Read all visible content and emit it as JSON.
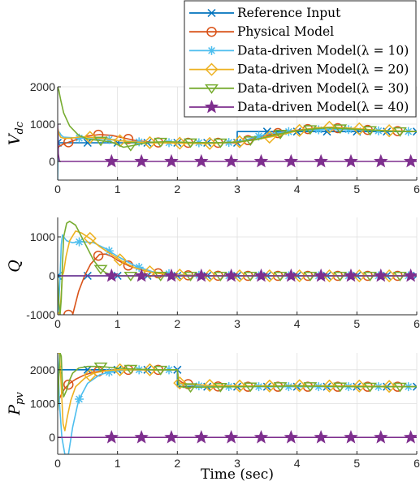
{
  "chart_data": [
    {
      "type": "line",
      "ylabel": "V_dc",
      "xlim": [
        0,
        6
      ],
      "ylim": [
        -500,
        2000
      ],
      "xticks": [
        0,
        1,
        2,
        3,
        4,
        5,
        6
      ],
      "yticks": [
        0,
        1000,
        2000
      ],
      "ytick_labels": [
        "0",
        "1000",
        "2000"
      ],
      "grid": true,
      "series": [
        {
          "name": "Reference Input",
          "x": [
            0,
            3,
            3,
            6
          ],
          "y": [
            500,
            500,
            800,
            800
          ]
        },
        {
          "name": "Physical Model",
          "x": [
            0,
            0.02,
            0.1,
            0.3,
            0.5,
            0.7,
            0.9,
            1.1,
            1.3,
            1.6,
            2.0,
            2.5,
            3.0,
            3.2,
            3.5,
            3.8,
            4.2,
            4.5,
            4.9,
            5.3,
            6.0
          ],
          "y": [
            300,
            400,
            470,
            580,
            680,
            720,
            700,
            630,
            560,
            510,
            500,
            500,
            500,
            580,
            700,
            800,
            870,
            900,
            880,
            830,
            800
          ]
        },
        {
          "name": "Data-driven Model(λ = 10)",
          "x": [
            0,
            0.01,
            0.03,
            0.06,
            0.1,
            0.2,
            0.4,
            0.6,
            0.8,
            1.0,
            1.5,
            2.0,
            2.5,
            2.9,
            3.1,
            3.5,
            4.0,
            4.5,
            5.0,
            5.5,
            6.0
          ],
          "y": [
            -500,
            800,
            780,
            700,
            650,
            640,
            620,
            600,
            600,
            560,
            510,
            500,
            500,
            510,
            560,
            740,
            820,
            860,
            850,
            810,
            800
          ]
        },
        {
          "name": "Data-driven Model(λ = 20)",
          "x": [
            0,
            0.02,
            0.05,
            0.1,
            0.2,
            0.4,
            0.6,
            0.8,
            1.0,
            1.3,
            1.6,
            2.0,
            2.5,
            3.0,
            3.3,
            3.7,
            4.0,
            4.3,
            4.6,
            5.0,
            5.4,
            6.0
          ],
          "y": [
            900,
            750,
            650,
            620,
            620,
            660,
            640,
            610,
            560,
            520,
            500,
            490,
            480,
            520,
            580,
            700,
            820,
            900,
            920,
            880,
            830,
            800
          ]
        },
        {
          "name": "Data-driven Model(λ = 30)",
          "x": [
            0,
            0.02,
            0.05,
            0.1,
            0.2,
            0.35,
            0.5,
            0.7,
            0.9,
            1.1,
            1.3,
            1.5,
            1.8,
            2.2,
            2.6,
            3.0,
            3.3,
            3.6,
            3.9,
            4.2,
            4.5,
            4.8,
            5.2,
            5.6,
            6.0
          ],
          "y": [
            2000,
            1900,
            1650,
            1300,
            950,
            700,
            600,
            560,
            520,
            380,
            440,
            510,
            530,
            510,
            500,
            520,
            580,
            700,
            800,
            860,
            900,
            880,
            840,
            810,
            800
          ]
        },
        {
          "name": "Data-driven Model(λ = 40)",
          "x": [
            0,
            0.01,
            0.03,
            6.0
          ],
          "y": [
            1000,
            200,
            0,
            0
          ]
        }
      ]
    },
    {
      "type": "line",
      "ylabel": "Q",
      "xlim": [
        0,
        6
      ],
      "ylim": [
        -1000,
        1500
      ],
      "xticks": [
        0,
        1,
        2,
        3,
        4,
        5,
        6
      ],
      "yticks": [
        -1000,
        0,
        1000
      ],
      "ytick_labels": [
        "-1000",
        "0",
        "1000"
      ],
      "grid": true,
      "series": [
        {
          "name": "Reference Input",
          "x": [
            0,
            6
          ],
          "y": [
            0,
            0
          ]
        },
        {
          "name": "Physical Model",
          "x": [
            0.25,
            0.3,
            0.35,
            0.45,
            0.55,
            0.7,
            0.8,
            0.9,
            1.0,
            1.2,
            1.4,
            1.6,
            1.8,
            2.0,
            2.4,
            3.0,
            6.0
          ],
          "y": [
            -1000,
            -700,
            -400,
            0,
            300,
            550,
            560,
            500,
            400,
            250,
            150,
            80,
            40,
            20,
            5,
            0,
            0
          ]
        },
        {
          "name": "Data-driven Model(λ = 10)",
          "x": [
            0,
            0.02,
            0.04,
            0.06,
            0.08,
            0.1,
            0.15,
            0.25,
            0.4,
            0.6,
            0.8,
            1.0,
            1.3,
            1.6,
            2.0,
            2.5,
            3.0,
            6.0
          ],
          "y": [
            -1000,
            -700,
            0,
            800,
            1050,
            1000,
            900,
            850,
            880,
            850,
            700,
            500,
            250,
            100,
            30,
            5,
            0,
            0
          ]
        },
        {
          "name": "Data-driven Model(λ = 20)",
          "x": [
            0,
            0.04,
            0.08,
            0.1,
            0.14,
            0.2,
            0.3,
            0.4,
            0.55,
            0.7,
            0.9,
            1.1,
            1.3,
            1.6,
            2.0,
            2.5,
            3.0,
            6.0
          ],
          "y": [
            -1000,
            -900,
            0,
            100,
            500,
            900,
            1150,
            1100,
            950,
            750,
            550,
            350,
            200,
            80,
            20,
            5,
            0,
            0
          ]
        },
        {
          "name": "Data-driven Model(λ = 30)",
          "x": [
            0,
            0.02,
            0.04,
            0.06,
            0.08,
            0.1,
            0.15,
            0.2,
            0.3,
            0.4,
            0.5,
            0.6,
            0.7,
            0.8,
            0.9,
            1.0,
            1.3,
            2.0,
            6.0
          ],
          "y": [
            0,
            -700,
            -1000,
            -600,
            300,
            1000,
            1350,
            1400,
            1300,
            1000,
            700,
            400,
            200,
            80,
            20,
            0,
            0,
            0,
            0
          ]
        },
        {
          "name": "Data-driven Model(λ = 40)",
          "x": [
            0,
            6
          ],
          "y": [
            0,
            0
          ]
        }
      ]
    },
    {
      "type": "line",
      "ylabel": "P_pv",
      "xlabel": "Time (sec)",
      "xlim": [
        0,
        6
      ],
      "ylim": [
        -500,
        2500
      ],
      "xticks": [
        0,
        1,
        2,
        3,
        4,
        5,
        6
      ],
      "xtick_labels": [
        "0",
        "1",
        "2",
        "3",
        "4",
        "5",
        "6"
      ],
      "yticks": [
        0,
        1000,
        2000
      ],
      "ytick_labels": [
        "0",
        "1000",
        "2000"
      ],
      "grid": true,
      "series": [
        {
          "name": "Reference Input",
          "x": [
            0,
            2,
            2,
            6
          ],
          "y": [
            2000,
            2000,
            1500,
            1500
          ]
        },
        {
          "name": "Physical Model",
          "x": [
            0,
            0.03,
            0.07,
            0.12,
            0.2,
            0.3,
            0.45,
            0.6,
            0.8,
            1.0,
            1.3,
            1.6,
            2.0,
            2.02,
            2.1,
            2.3,
            2.6,
            3.0,
            4.0,
            6.0
          ],
          "y": [
            1000,
            1150,
            1300,
            1450,
            1600,
            1720,
            1850,
            1930,
            1980,
            2000,
            2000,
            2000,
            2000,
            1700,
            1600,
            1540,
            1510,
            1500,
            1500,
            1500
          ]
        },
        {
          "name": "Data-driven Model(λ = 10)",
          "x": [
            0,
            0.03,
            0.07,
            0.12,
            0.18,
            0.25,
            0.35,
            0.5,
            0.7,
            0.9,
            1.2,
            1.6,
            2.0,
            2.02,
            2.1,
            2.4,
            3.0,
            6.0
          ],
          "y": [
            2500,
            1000,
            0,
            -500,
            -500,
            300,
            1100,
            1600,
            1850,
            1950,
            2000,
            2000,
            2000,
            1600,
            1560,
            1520,
            1500,
            1500
          ]
        },
        {
          "name": "Data-driven Model(λ = 20)",
          "x": [
            0,
            0.03,
            0.06,
            0.09,
            0.12,
            0.16,
            0.22,
            0.3,
            0.45,
            0.6,
            0.8,
            1.0,
            1.3,
            1.7,
            2.0,
            2.02,
            2.1,
            2.5,
            3.0,
            3.5,
            4.0,
            4.5,
            5.0,
            5.5,
            6.0
          ],
          "y": [
            2500,
            2500,
            1500,
            400,
            200,
            600,
            1100,
            1500,
            1750,
            1900,
            1970,
            2000,
            2000,
            2000,
            2000,
            1620,
            1580,
            1540,
            1520,
            1520,
            1530,
            1520,
            1520,
            1510,
            1500
          ]
        },
        {
          "name": "Data-driven Model(λ = 30)",
          "x": [
            0,
            0.02,
            0.04,
            0.06,
            0.08,
            0.1,
            0.15,
            0.2,
            0.25,
            0.35,
            0.5,
            0.7,
            1.0,
            1.3,
            1.6,
            2.0,
            2.02,
            2.1,
            2.5,
            3.0,
            3.5,
            4.0,
            4.5,
            5.0,
            6.0
          ],
          "y": [
            800,
            1800,
            2500,
            2400,
            1500,
            1200,
            1400,
            1700,
            1900,
            2050,
            2100,
            2100,
            2050,
            2020,
            2000,
            2000,
            1550,
            1480,
            1490,
            1500,
            1510,
            1520,
            1510,
            1500,
            1500
          ]
        },
        {
          "name": "Data-driven Model(λ = 40)",
          "x": [
            0,
            6
          ],
          "y": [
            0,
            0
          ]
        }
      ]
    }
  ],
  "series_style": [
    {
      "name": "Reference Input",
      "color": "#0072BD",
      "marker": "x"
    },
    {
      "name": "Physical Model",
      "color": "#D95319",
      "marker": "circle"
    },
    {
      "name": "Data-driven Model(λ = 10)",
      "color": "#4DBEEE",
      "marker": "asterisk"
    },
    {
      "name": "Data-driven Model(λ = 20)",
      "color": "#EDB120",
      "marker": "diamond"
    },
    {
      "name": "Data-driven Model(λ = 30)",
      "color": "#77AC30",
      "marker": "triangle-down"
    },
    {
      "name": "Data-driven Model(λ = 40)",
      "color": "#7E2F8E",
      "marker": "pentagram"
    }
  ],
  "legend": {
    "placement": "top-right",
    "entries": [
      {
        "label": "Reference Input",
        "color": "#0072BD",
        "marker": "x"
      },
      {
        "label": "Physical Model",
        "color": "#D95319",
        "marker": "circle"
      },
      {
        "label": "Data-driven Model(λ = 10)",
        "color": "#4DBEEE",
        "marker": "asterisk"
      },
      {
        "label": "Data-driven Model(λ = 20)",
        "color": "#EDB120",
        "marker": "diamond"
      },
      {
        "label": "Data-driven Model(λ = 30)",
        "color": "#77AC30",
        "marker": "triangle-down"
      },
      {
        "label": "Data-driven Model(λ = 40)",
        "color": "#7E2F8E",
        "marker": "pentagram"
      }
    ]
  }
}
